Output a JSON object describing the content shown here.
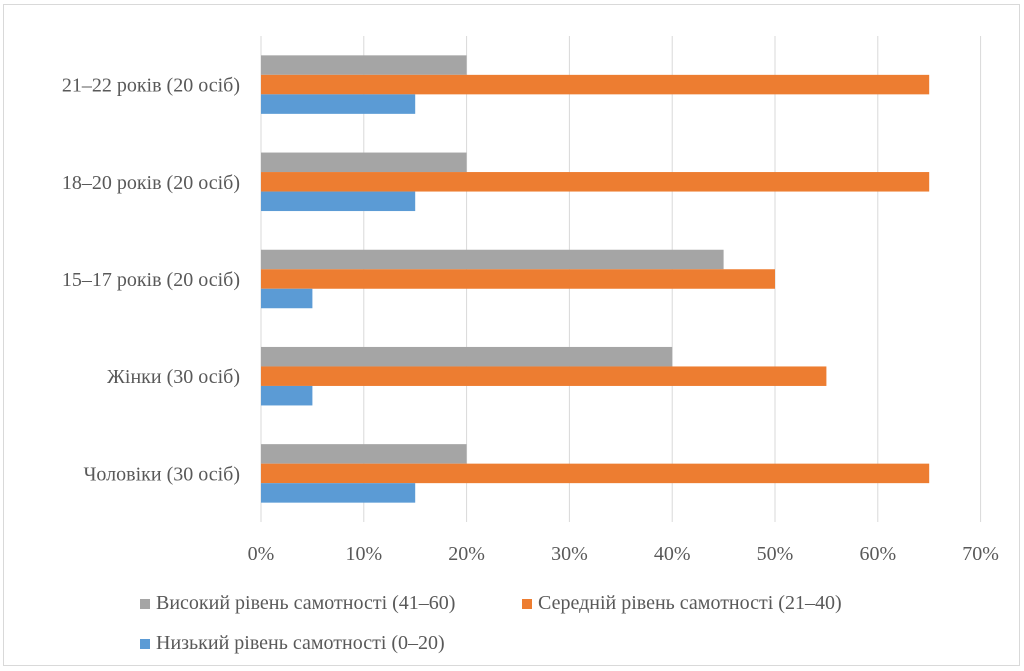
{
  "chart_data": {
    "type": "bar",
    "orientation": "horizontal",
    "categories": [
      "Чоловіки (30 осіб)",
      "Жінки (30 осіб)",
      "15–17 років (20 осіб)",
      "18–20 років (20 осіб)",
      "21–22 років (20 осіб)"
    ],
    "series": [
      {
        "name": "Низький рівень самотності (0–20)",
        "color": "#5b9bd5",
        "values": [
          15,
          5,
          5,
          15,
          15
        ]
      },
      {
        "name": "Середній рівень самотності (21–40)",
        "color": "#ed7d31",
        "values": [
          65,
          55,
          50,
          65,
          65
        ]
      },
      {
        "name": "Високий рівень самотності (41–60)",
        "color": "#a5a5a5",
        "values": [
          20,
          40,
          45,
          20,
          20
        ]
      }
    ],
    "x_ticks": [
      "0%",
      "10%",
      "20%",
      "30%",
      "40%",
      "50%",
      "60%",
      "70%"
    ],
    "xlim": [
      0,
      70
    ],
    "unit": "%",
    "grid": true,
    "legend_position": "bottom"
  }
}
